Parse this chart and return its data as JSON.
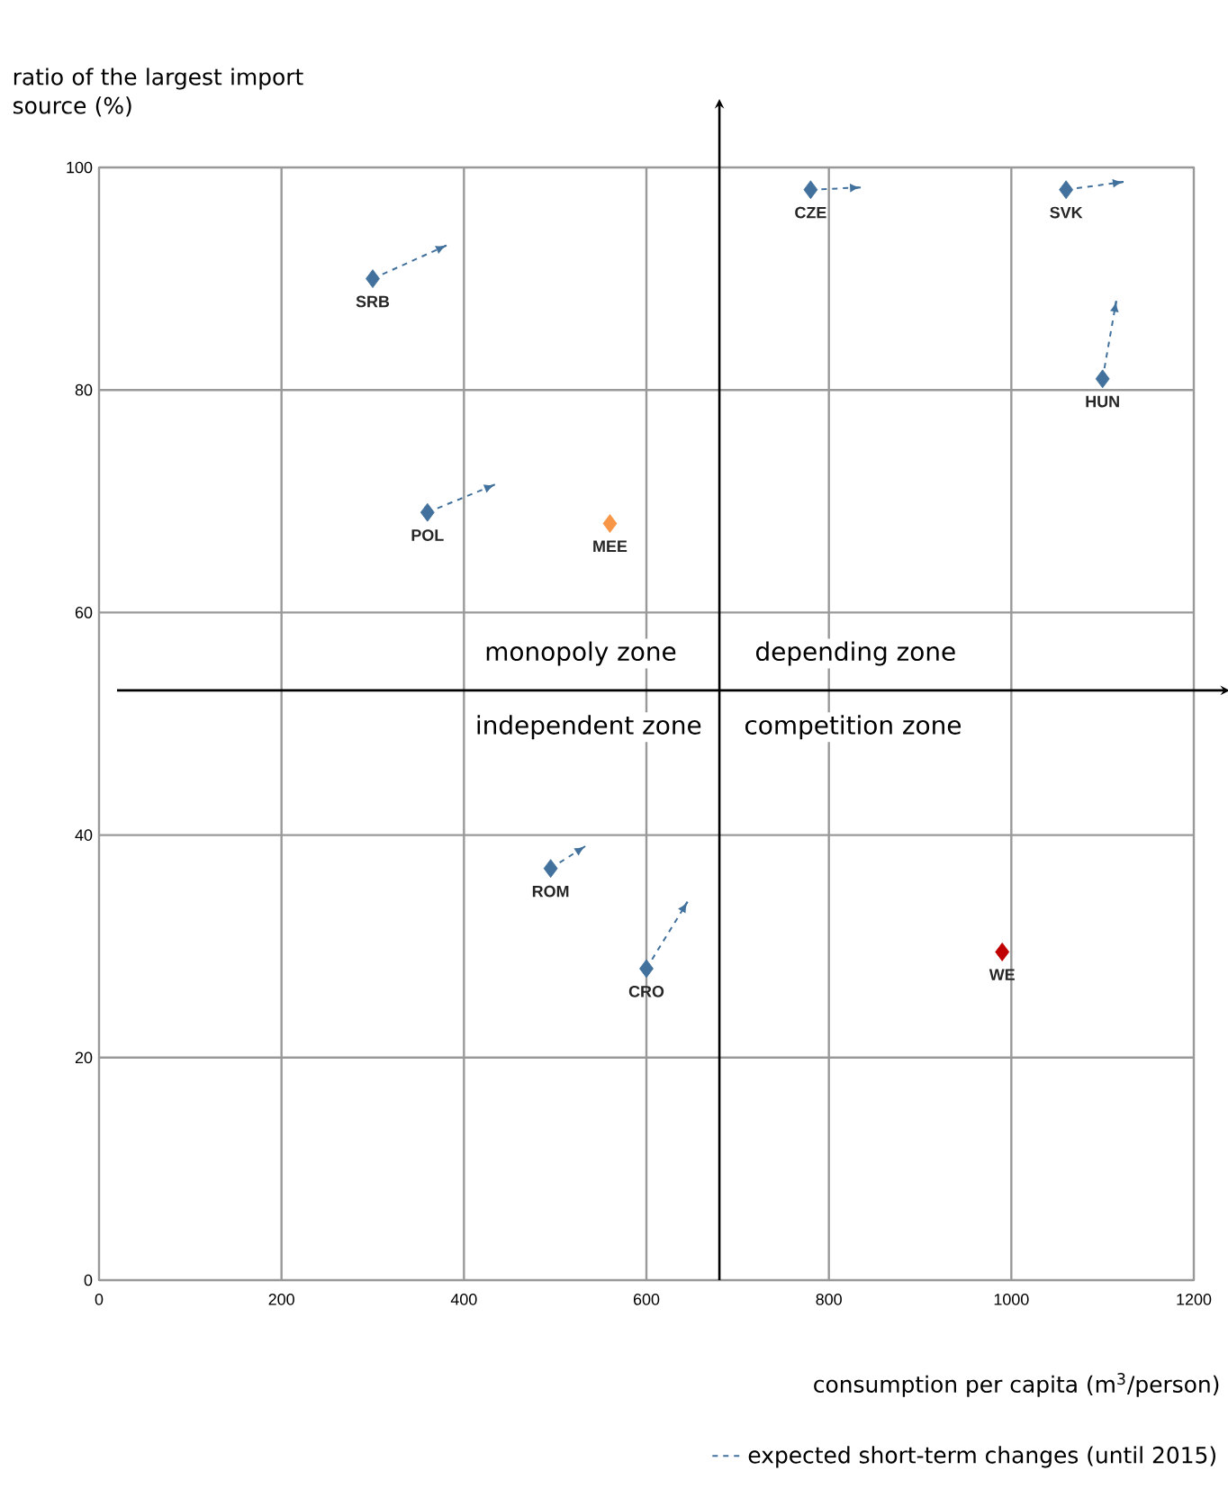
{
  "chart_data": {
    "type": "scatter",
    "xlabel": "consumption per capita (m$^{3}$/person)",
    "ylabel": "ratio of the largest import source (%)",
    "xlim": [
      0,
      1200
    ],
    "xticks": [
      0,
      200,
      400,
      600,
      800,
      1000,
      1200
    ],
    "ylim": [
      0,
      100
    ],
    "yticks": [
      0,
      20,
      40,
      60,
      80,
      100
    ],
    "grid": true,
    "legend": "bottom",
    "marker": "diamond",
    "series": [
      {
        "name": "SRB",
        "color": "#41719c",
        "x": [
          300
        ],
        "values": [
          90
        ]
      },
      {
        "name": "POL",
        "color": "#41719c",
        "x": [
          360
        ],
        "values": [
          69
        ]
      },
      {
        "name": "MEE",
        "color": "#f79646",
        "x": [
          560
        ],
        "values": [
          68
        ]
      },
      {
        "name": "CZE",
        "color": "#41719c",
        "x": [
          780
        ],
        "values": [
          98
        ]
      },
      {
        "name": "SVK",
        "color": "#41719c",
        "x": [
          1060
        ],
        "values": [
          98
        ]
      },
      {
        "name": "HUN",
        "color": "#41719c",
        "x": [
          1100
        ],
        "values": [
          81
        ]
      },
      {
        "name": "ROM",
        "color": "#41719c",
        "x": [
          495
        ],
        "values": [
          37
        ]
      },
      {
        "name": "CRO",
        "color": "#41719c",
        "x": [
          600
        ],
        "values": [
          28
        ]
      },
      {
        "name": "WE",
        "color": "#c00000",
        "x": [
          990
        ],
        "values": [
          29.5
        ]
      },
      {
        "name": "expected short-term changes (until 2015)",
        "type": "line",
        "line_style": "dashed",
        "marker": "none",
        "color": "#41719c",
        "x": [
          300,
          381,
          null,
          360,
          434,
          null,
          780,
          835,
          null,
          1060,
          1123,
          null,
          1100,
          1115,
          null,
          495,
          533,
          null,
          600,
          645
        ],
        "values": [
          90,
          93,
          null,
          69,
          71.5,
          null,
          98,
          98.2,
          null,
          98,
          98.7,
          null,
          81,
          88,
          null,
          37,
          39,
          null,
          28,
          34
        ]
      }
    ],
    "ref_lines": [
      {
        "axis": "x",
        "value": 680,
        "color": "#000000"
      },
      {
        "axis": "y",
        "value": 53,
        "color": "#000000"
      }
    ],
    "annotations": [
      "monopoly zone",
      "depending zone",
      "independent zone",
      "competition zone"
    ]
  }
}
